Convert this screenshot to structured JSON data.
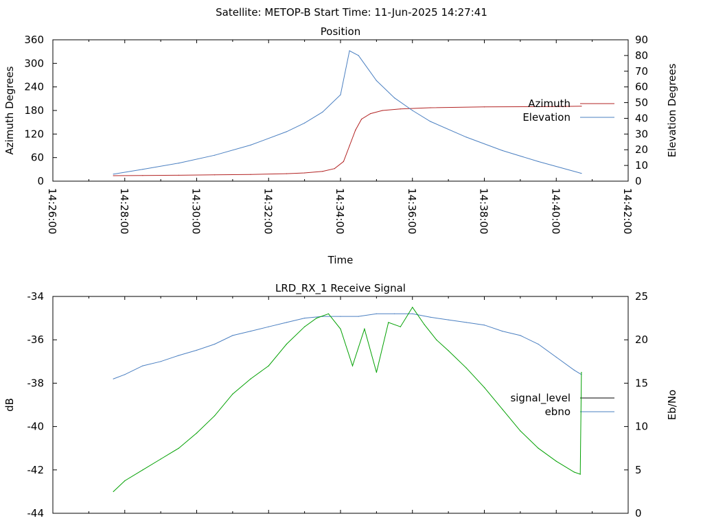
{
  "header": {
    "title": "Satellite: METOP-B    Start Time: 11-Jun-2025 14:27:41"
  },
  "colors": {
    "azimuth": "#b22222",
    "elevation": "#4a7fc1",
    "signal_level": "#000000",
    "ebno_line": "#4a7fc1",
    "green_trace": "#00a000"
  },
  "chart_data": [
    {
      "type": "line",
      "title": "Position",
      "xlabel": "Time",
      "ylabel": "Azimuth Degrees",
      "y2label": "Elevation Degrees",
      "xlim": [
        "14:26:00",
        "14:42:00"
      ],
      "ylim": [
        0,
        360
      ],
      "y2lim": [
        0,
        90
      ],
      "x_ticks": [
        "14:26:00",
        "14:28:00",
        "14:30:00",
        "14:32:00",
        "14:34:00",
        "14:36:00",
        "14:38:00",
        "14:40:00",
        "14:42:00"
      ],
      "y_ticks": [
        "0",
        "60",
        "120",
        "180",
        "240",
        "300",
        "360"
      ],
      "y2_ticks": [
        "0",
        "10",
        "20",
        "30",
        "40",
        "50",
        "60",
        "70",
        "80",
        "90"
      ],
      "grid": false,
      "legend_position": "right",
      "series": [
        {
          "name": "Azimuth",
          "axis": "y",
          "color": "#b22222",
          "x": [
            "14:27:41",
            "14:28:30",
            "14:29:30",
            "14:30:30",
            "14:31:30",
            "14:32:30",
            "14:33:00",
            "14:33:30",
            "14:33:50",
            "14:34:05",
            "14:34:15",
            "14:34:25",
            "14:34:35",
            "14:34:50",
            "14:35:10",
            "14:35:40",
            "14:36:30",
            "14:38:00",
            "14:40:00",
            "14:40:42"
          ],
          "y": [
            14,
            14.5,
            15,
            16,
            17,
            19,
            21,
            25,
            32,
            50,
            90,
            130,
            158,
            172,
            180,
            184,
            187,
            189,
            190,
            191
          ]
        },
        {
          "name": "Elevation",
          "axis": "y2",
          "color": "#4a7fc1",
          "x": [
            "14:27:41",
            "14:28:30",
            "14:29:30",
            "14:30:30",
            "14:31:30",
            "14:32:30",
            "14:33:00",
            "14:33:30",
            "14:34:00",
            "14:34:15",
            "14:34:30",
            "14:35:00",
            "14:35:30",
            "14:36:00",
            "14:36:30",
            "14:37:30",
            "14:38:30",
            "14:39:30",
            "14:40:42"
          ],
          "y": [
            4.5,
            7.5,
            11.5,
            16.5,
            23,
            31.5,
            37,
            44,
            55,
            83,
            80,
            64,
            53,
            45,
            38,
            28,
            19.5,
            12.5,
            5
          ]
        }
      ]
    },
    {
      "type": "line",
      "title": "LRD_RX_1 Receive Signal",
      "ylabel": "dB",
      "y2label": "Eb/No",
      "xlim": [
        "14:26:00",
        "14:42:00"
      ],
      "ylim": [
        -44,
        -34
      ],
      "y2lim": [
        0,
        25
      ],
      "y_ticks": [
        "-34",
        "-36",
        "-38",
        "-40",
        "-42",
        "-44"
      ],
      "y2_ticks": [
        "25",
        "20",
        "15",
        "10",
        "5",
        "0"
      ],
      "grid": false,
      "legend_position": "right",
      "series": [
        {
          "name": "signal_level",
          "axis": "y",
          "color": "#000000",
          "x": [],
          "y": []
        },
        {
          "name": "ebno",
          "axis": "y2",
          "color": "#4a7fc1",
          "x": [
            "14:27:41",
            "14:28:00",
            "14:28:30",
            "14:29:00",
            "14:29:30",
            "14:30:00",
            "14:30:30",
            "14:31:00",
            "14:31:30",
            "14:32:00",
            "14:32:30",
            "14:33:00",
            "14:33:30",
            "14:34:00",
            "14:34:30",
            "14:35:00",
            "14:35:30",
            "14:36:00",
            "14:36:30",
            "14:37:00",
            "14:37:30",
            "14:38:00",
            "14:38:30",
            "14:39:00",
            "14:39:30",
            "14:40:00",
            "14:40:30",
            "14:40:42"
          ],
          "y": [
            15.5,
            16,
            17,
            17.5,
            18.2,
            18.8,
            19.5,
            20.5,
            21,
            21.5,
            22,
            22.5,
            22.7,
            22.7,
            22.7,
            23,
            23,
            23,
            22.6,
            22.3,
            22,
            21.7,
            21,
            20.5,
            19.5,
            18,
            16.5,
            16
          ]
        },
        {
          "name": "",
          "axis": "y",
          "color": "#00a000",
          "x": [
            "14:27:41",
            "14:28:00",
            "14:28:30",
            "14:29:00",
            "14:29:30",
            "14:30:00",
            "14:30:30",
            "14:31:00",
            "14:31:30",
            "14:32:00",
            "14:32:30",
            "14:33:00",
            "14:33:20",
            "14:33:40",
            "14:34:00",
            "14:34:20",
            "14:34:40",
            "14:35:00",
            "14:35:20",
            "14:35:40",
            "14:36:00",
            "14:36:20",
            "14:36:40",
            "14:37:00",
            "14:37:30",
            "14:38:00",
            "14:38:30",
            "14:39:00",
            "14:39:30",
            "14:40:00",
            "14:40:30",
            "14:40:40",
            "14:40:42"
          ],
          "y": [
            -43.0,
            -42.5,
            -42.0,
            -41.5,
            -41.0,
            -40.3,
            -39.5,
            -38.5,
            -37.8,
            -37.2,
            -36.2,
            -35.4,
            -35.0,
            -34.8,
            -35.5,
            -37.2,
            -35.5,
            -37.5,
            -35.2,
            -35.4,
            -34.5,
            -35.3,
            -36.0,
            -36.5,
            -37.3,
            -38.2,
            -39.2,
            -40.2,
            -41.0,
            -41.6,
            -42.1,
            -42.2,
            -37.5
          ]
        }
      ]
    }
  ]
}
